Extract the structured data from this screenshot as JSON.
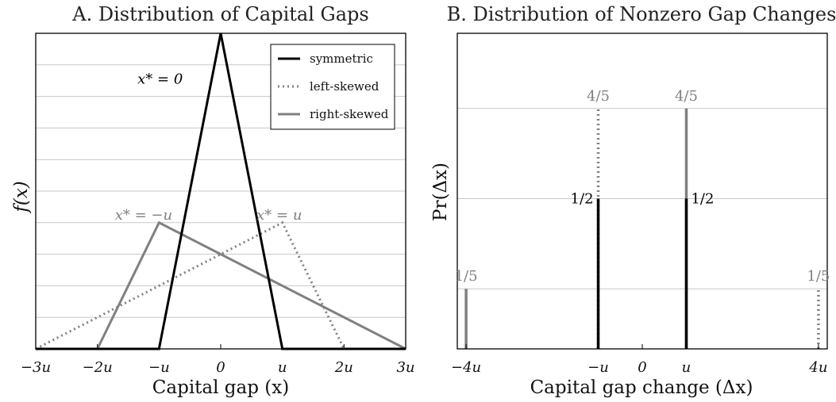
{
  "chart_data": [
    {
      "type": "line",
      "title": "A. Distribution of Capital Gaps",
      "xlabel": "Capital gap (x)",
      "ylabel": "f(x)",
      "xlim": [
        -3,
        3
      ],
      "ylim": [
        0,
        1.0
      ],
      "x_unit": "u",
      "xticks": [
        "−3u",
        "−2u",
        "−u",
        "0",
        "u",
        "2u",
        "3u"
      ],
      "xtick_values": [
        -3,
        -2,
        -1,
        0,
        1,
        2,
        3
      ],
      "grid": "horizontal",
      "legend_position": "top-right",
      "series": [
        {
          "name": "symmetric",
          "style": "solid",
          "color": "#000000",
          "x": [
            -3,
            -1,
            0,
            1,
            3
          ],
          "y": [
            0,
            0,
            1.0,
            0,
            0
          ]
        },
        {
          "name": "left-skewed",
          "style": "dotted",
          "color": "#808080",
          "x": [
            -3,
            1,
            2,
            3
          ],
          "y": [
            0,
            0.4,
            0,
            0
          ]
        },
        {
          "name": "right-skewed",
          "style": "solid",
          "color": "#808080",
          "x": [
            -3,
            -2,
            -1,
            3
          ],
          "y": [
            0,
            0,
            0.4,
            0
          ]
        }
      ],
      "annotations": [
        {
          "text": "x* = 0",
          "x": -1.35,
          "y": 0.84,
          "color": "#000000"
        },
        {
          "text": "x* = −u",
          "x": -1.25,
          "y": 0.41,
          "color": "#808080"
        },
        {
          "text": "x* = u",
          "x": 0.95,
          "y": 0.41,
          "color": "#808080"
        }
      ]
    },
    {
      "type": "bar",
      "title": "B. Distribution of Nonzero Gap Changes",
      "xlabel": "Capital gap change (Δx)",
      "ylabel": "Pr(Δx)",
      "xlim": [
        -4.2,
        4.2
      ],
      "ylim": [
        0,
        1.05
      ],
      "x_unit": "u",
      "xticks": [
        "−4u",
        "−u",
        "0",
        "u",
        "4u"
      ],
      "xtick_values": [
        -4,
        -1,
        0,
        1,
        4
      ],
      "grid": "horizontal",
      "series": [
        {
          "name": "symmetric",
          "style": "solid",
          "color": "#000000",
          "x": [
            -1,
            1
          ],
          "values": [
            0.5,
            0.5
          ],
          "labels": [
            "1/2",
            "1/2"
          ]
        },
        {
          "name": "left-skewed",
          "style": "dotted",
          "color": "#808080",
          "x": [
            -1,
            4
          ],
          "values": [
            0.8,
            0.2
          ],
          "labels": [
            "4/5",
            "1/5"
          ]
        },
        {
          "name": "right-skewed",
          "style": "solid",
          "color": "#808080",
          "x": [
            -4,
            1
          ],
          "values": [
            0.2,
            0.8
          ],
          "labels": [
            "1/5",
            "4/5"
          ]
        }
      ]
    }
  ]
}
